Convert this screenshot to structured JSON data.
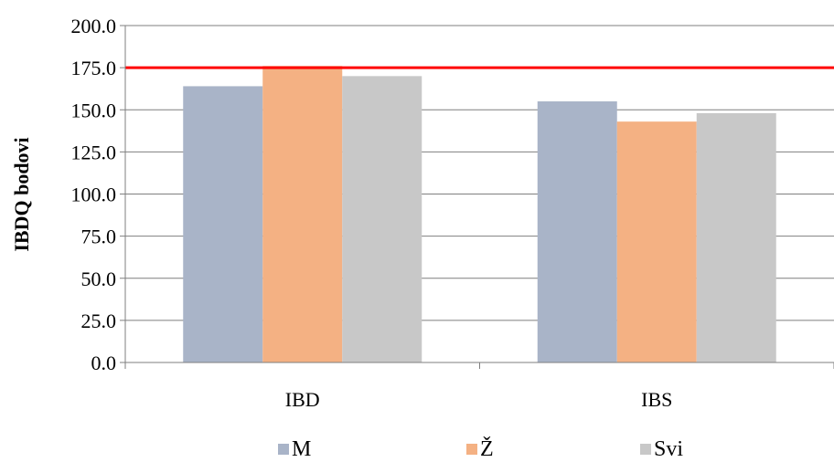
{
  "chart_data": {
    "type": "bar",
    "categories": [
      "IBD",
      "IBS"
    ],
    "series": [
      {
        "name": "M",
        "values": [
          164,
          155
        ],
        "color": "#A9B4C8"
      },
      {
        "name": "Ž",
        "values": [
          176,
          143
        ],
        "color": "#F4B183"
      },
      {
        "name": "Svi",
        "values": [
          170,
          148
        ],
        "color": "#C8C8C8"
      }
    ],
    "ylabel": "IBDQ bodovi",
    "ylim": [
      0,
      200
    ],
    "yticks": [
      "0.0",
      "25.0",
      "50.0",
      "75.0",
      "100.0",
      "125.0",
      "150.0",
      "175.0",
      "200.0"
    ],
    "reference_line": {
      "value": 175,
      "color": "#FF0000"
    },
    "grid": true,
    "legend": "bottom"
  }
}
